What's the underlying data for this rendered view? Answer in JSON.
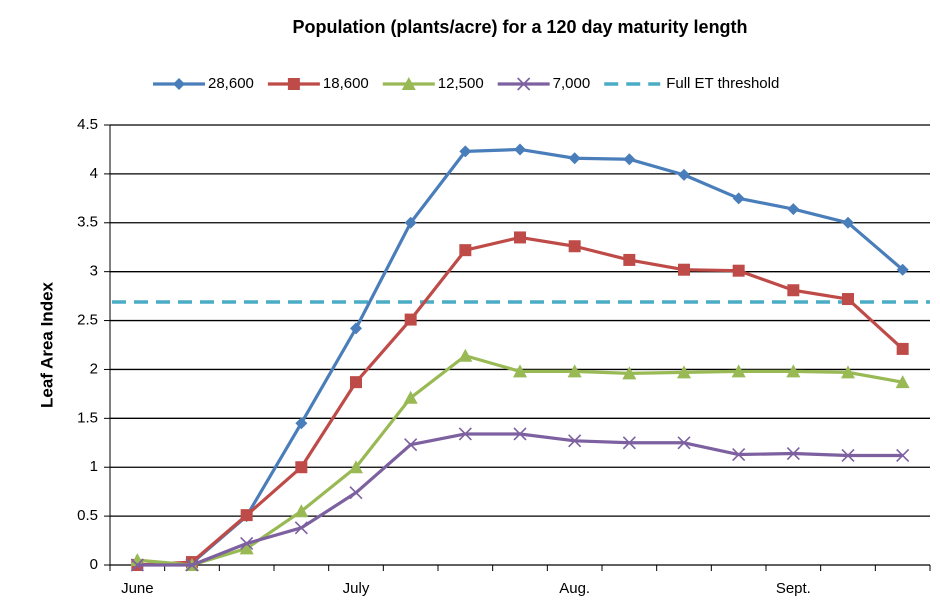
{
  "chart_data": {
    "type": "line",
    "title": "Population (plants/acre) for a 120 day maturity length",
    "y_label": "Leaf Area Index",
    "categories": [
      "June",
      null,
      null,
      null,
      "July",
      null,
      null,
      null,
      "Aug.",
      null,
      null,
      null,
      "Sept.",
      null,
      null
    ],
    "series": [
      {
        "name": "28,600",
        "color": "#4a7ebb",
        "marker": "diamond",
        "values": [
          0,
          0.02,
          0.5,
          1.45,
          2.42,
          3.5,
          4.23,
          4.25,
          4.16,
          4.15,
          3.99,
          3.75,
          3.64,
          3.5,
          3.02
        ]
      },
      {
        "name": "18,600",
        "color": "#be4b48",
        "marker": "square",
        "values": [
          0,
          0.03,
          0.51,
          1.0,
          1.87,
          2.51,
          3.22,
          3.35,
          3.26,
          3.12,
          3.02,
          3.01,
          2.81,
          2.72,
          2.21
        ]
      },
      {
        "name": "12,500",
        "color": "#98b954",
        "marker": "triangle",
        "values": [
          0.05,
          0,
          0.17,
          0.55,
          1.0,
          1.71,
          2.14,
          1.98,
          1.98,
          1.96,
          1.97,
          1.98,
          1.98,
          1.97,
          1.87
        ]
      },
      {
        "name": "7,000",
        "color": "#7d60a0",
        "marker": "x",
        "values": [
          0,
          0,
          0.22,
          0.38,
          0.74,
          1.23,
          1.34,
          1.34,
          1.27,
          1.25,
          1.25,
          1.13,
          1.14,
          1.12,
          1.12
        ]
      }
    ],
    "threshold": {
      "name": "Full ET threshold",
      "value": 2.69,
      "color": "#4bacc6"
    },
    "ylim": [
      0,
      4.5
    ],
    "yticks": [
      0,
      0.5,
      1,
      1.5,
      2,
      2.5,
      3,
      3.5,
      4,
      4.5
    ],
    "grid": true,
    "legend": "top"
  }
}
